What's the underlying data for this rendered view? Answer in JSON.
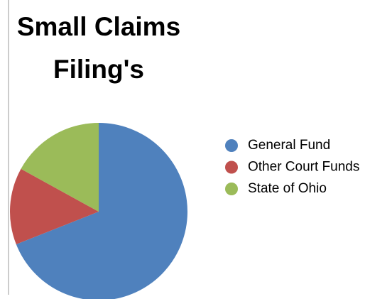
{
  "chart_data": {
    "type": "pie",
    "title": "Small Claims Filing's",
    "categories": [
      "General Fund",
      "Other Court Funds",
      "State of Ohio"
    ],
    "values": [
      69,
      14,
      17
    ],
    "colors": [
      "#4f81bd",
      "#c0504d",
      "#9bbb59"
    ],
    "legend": "right"
  }
}
